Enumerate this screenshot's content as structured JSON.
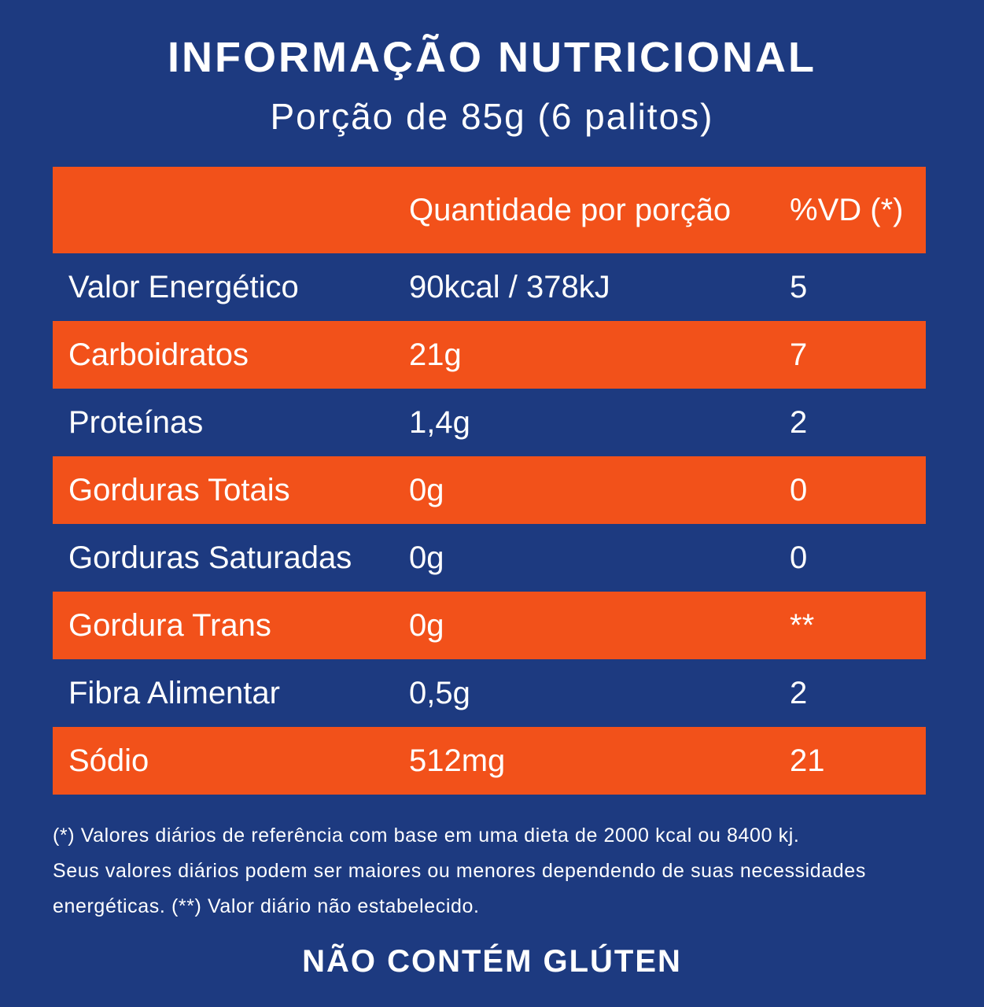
{
  "title": "INFORMAÇÃO NUTRICIONAL",
  "subtitle": "Porção de 85g (6 palitos)",
  "colors": {
    "background": "#1d3a80",
    "accent": "#f2511a",
    "text": "#ffffff"
  },
  "table": {
    "headers": [
      "",
      "Quantidade por porção",
      "%VD (*)"
    ],
    "rows": [
      {
        "nutrient": "Valor Energético",
        "amount": "90kcal / 378kJ",
        "dv": "5"
      },
      {
        "nutrient": "Carboidratos",
        "amount": "21g",
        "dv": "7"
      },
      {
        "nutrient": "Proteínas",
        "amount": "1,4g",
        "dv": "2"
      },
      {
        "nutrient": "Gorduras Totais",
        "amount": "0g",
        "dv": "0"
      },
      {
        "nutrient": "Gorduras Saturadas",
        "amount": "0g",
        "dv": "0"
      },
      {
        "nutrient": "Gordura Trans",
        "amount": "0g",
        "dv": "**"
      },
      {
        "nutrient": "Fibra Alimentar",
        "amount": "0,5g",
        "dv": "2"
      },
      {
        "nutrient": "Sódio",
        "amount": "512mg",
        "dv": "21"
      }
    ]
  },
  "footnote": {
    "line1": "(*) Valores diários de referência com base em uma dieta de 2000 kcal ou 8400 kj.",
    "line2": "Seus valores diários podem ser maiores ou menores dependendo de suas necessidades",
    "line3": "energéticas. (**) Valor diário não estabelecido."
  },
  "footer": "NÃO CONTÉM GLÚTEN"
}
